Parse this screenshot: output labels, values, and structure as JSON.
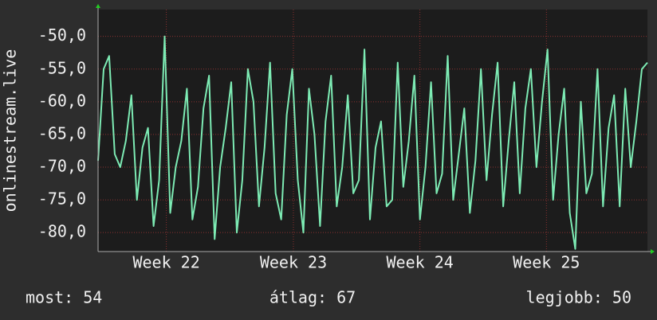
{
  "chart_data": {
    "type": "line",
    "y_label": "onlinestream.live",
    "x": [
      0,
      1,
      2,
      3,
      4,
      5,
      6,
      7,
      8,
      9,
      10,
      11,
      12,
      13,
      14,
      15,
      16,
      17,
      18,
      19,
      20,
      21,
      22,
      23,
      24,
      25,
      26,
      27,
      28,
      29,
      30,
      31,
      32,
      33,
      34,
      35,
      36,
      37,
      38,
      39,
      40,
      41,
      42,
      43,
      44,
      45,
      46,
      47,
      48,
      49,
      50,
      51,
      52,
      53,
      54,
      55,
      56,
      57,
      58,
      59,
      60,
      61,
      62,
      63,
      64,
      65,
      66,
      67,
      68,
      69,
      70,
      71,
      72,
      73,
      74,
      75,
      76,
      77,
      78,
      79,
      80,
      81,
      82,
      83,
      84,
      85,
      86,
      87,
      88,
      89,
      90,
      91,
      92,
      93,
      94,
      95,
      96,
      97,
      98,
      99
    ],
    "series": [
      {
        "color": "#7debb4",
        "values": [
          -69,
          -55,
          -53,
          -68,
          -70,
          -66,
          -59,
          -75,
          -67,
          -64,
          -79,
          -72,
          -50,
          -77,
          -70,
          -66,
          -58,
          -78,
          -73,
          -61,
          -56,
          -81,
          -70,
          -64,
          -57,
          -80,
          -72,
          -55,
          -60,
          -76,
          -67,
          -54,
          -74,
          -78,
          -62,
          -55,
          -72,
          -80,
          -58,
          -65,
          -79,
          -63,
          -56,
          -76,
          -70,
          -59,
          -74,
          -72,
          -52,
          -78,
          -67,
          -63,
          -76,
          -75,
          -54,
          -73,
          -66,
          -56,
          -78,
          -70,
          -57,
          -74,
          -71,
          -53,
          -75,
          -68,
          -61,
          -77,
          -69,
          -55,
          -72,
          -62,
          -54,
          -76,
          -66,
          -57,
          -74,
          -61,
          -55,
          -70,
          -60,
          -52,
          -75,
          -65,
          -58,
          -77,
          -82.5,
          -60,
          -74,
          -71,
          -55,
          -76,
          -64,
          -59,
          -76,
          -58,
          -70,
          -63,
          -55,
          -54
        ]
      }
    ],
    "xlim": [
      0,
      99
    ],
    "xticks": [
      {
        "value": 12.3,
        "label": "Week 22"
      },
      {
        "value": 35.2,
        "label": "Week 23"
      },
      {
        "value": 58.0,
        "label": "Week 24"
      },
      {
        "value": 80.8,
        "label": "Week 25"
      }
    ],
    "ylim": [
      -82.9,
      -45.9
    ],
    "yticks": [
      {
        "value": -80,
        "label": "-80,0"
      },
      {
        "value": -75,
        "label": "-75,0"
      },
      {
        "value": -70,
        "label": "-70,0"
      },
      {
        "value": -65,
        "label": "-65,0"
      },
      {
        "value": -60,
        "label": "-60,0"
      },
      {
        "value": -55,
        "label": "-55,0"
      },
      {
        "value": -50,
        "label": "-50,0"
      }
    ],
    "grid": true,
    "annotations": [
      "most: 54",
      "átlag: 67",
      "legjobb: 50"
    ]
  }
}
